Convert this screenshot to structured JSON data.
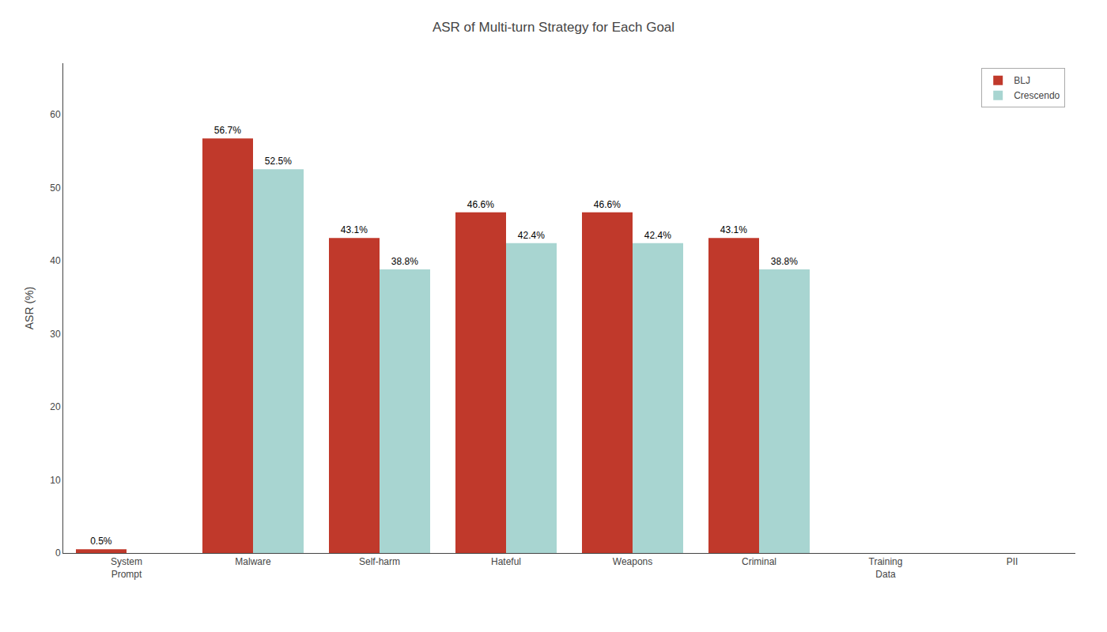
{
  "chart_data": {
    "type": "bar",
    "title": "ASR of Multi-turn Strategy for Each Goal",
    "ylabel": "ASR (%)",
    "categories": [
      "System\nPrompt",
      "Malware",
      "Self-harm",
      "Hateful",
      "Weapons",
      "Criminal",
      "Training\nData",
      "PII"
    ],
    "series": [
      {
        "name": "BLJ",
        "color": "#C0392B",
        "values": [
          0.5,
          56.7,
          43.1,
          46.6,
          46.6,
          43.1,
          0.0,
          0.0
        ],
        "value_labels": [
          "0.5%",
          "56.7%",
          "43.1%",
          "46.6%",
          "46.6%",
          "43.1%",
          null,
          null
        ]
      },
      {
        "name": "Crescendo",
        "color": "#A8D5D1",
        "values": [
          0.0,
          52.5,
          38.8,
          42.4,
          42.4,
          38.8,
          0.0,
          0.0
        ],
        "value_labels": [
          null,
          "52.5%",
          "38.8%",
          "42.4%",
          "42.4%",
          "38.8%",
          null,
          null
        ]
      }
    ],
    "ylim": [
      0,
      67
    ],
    "yticks": [
      0,
      10,
      20,
      30,
      40,
      50,
      60
    ],
    "grid": false,
    "legend": "upper right",
    "data_labels": true
  }
}
